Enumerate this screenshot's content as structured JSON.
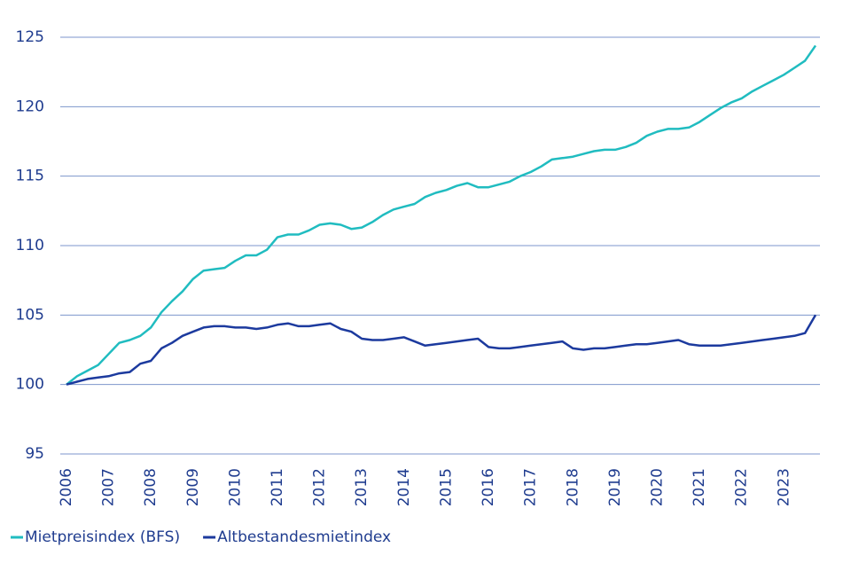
{
  "chart_data": {
    "type": "line",
    "categories": [
      "2006",
      null,
      null,
      null,
      "2007",
      null,
      null,
      null,
      "2008",
      null,
      null,
      null,
      "2009",
      null,
      null,
      null,
      "2010",
      null,
      null,
      null,
      "2011",
      null,
      null,
      null,
      "2012",
      null,
      null,
      null,
      "2013",
      null,
      null,
      null,
      "2014",
      null,
      null,
      null,
      "2015",
      null,
      null,
      null,
      "2016",
      null,
      null,
      null,
      "2017",
      null,
      null,
      null,
      "2018",
      null,
      null,
      null,
      "2019",
      null,
      null,
      null,
      "2020",
      null,
      null,
      null,
      "2021",
      null,
      null,
      null,
      "2022",
      null,
      null,
      null,
      "2023",
      null,
      null,
      null
    ],
    "series": [
      {
        "name": "Mietpreisindex (BFS)",
        "color": "#20bcc0",
        "values": [
          100,
          100.6,
          101.0,
          101.4,
          102.2,
          103.0,
          103.2,
          103.5,
          104.1,
          105.2,
          106.0,
          106.7,
          107.6,
          108.2,
          108.3,
          108.4,
          108.9,
          109.3,
          109.3,
          109.7,
          110.6,
          110.8,
          110.8,
          111.1,
          111.5,
          111.6,
          111.5,
          111.2,
          111.3,
          111.7,
          112.2,
          112.6,
          112.8,
          113.0,
          113.5,
          113.8,
          114.0,
          114.3,
          114.5,
          114.2,
          114.2,
          114.4,
          114.6,
          115.0,
          115.3,
          115.7,
          116.2,
          116.3,
          116.4,
          116.6,
          116.8,
          116.9,
          116.9,
          117.1,
          117.4,
          117.9,
          118.2,
          118.4,
          118.4,
          118.5,
          118.9,
          119.4,
          119.9,
          120.3,
          120.6,
          121.1,
          121.5,
          121.9,
          122.3,
          122.8,
          123.3,
          124.4
        ]
      },
      {
        "name": "Altbestandesmietindex",
        "color": "#1c3a9e",
        "values": [
          100,
          100.2,
          100.4,
          100.5,
          100.6,
          100.8,
          100.9,
          101.5,
          101.7,
          102.6,
          103.0,
          103.5,
          103.8,
          104.1,
          104.2,
          104.2,
          104.1,
          104.1,
          104.0,
          104.1,
          104.3,
          104.4,
          104.2,
          104.2,
          104.3,
          104.4,
          104.0,
          103.8,
          103.3,
          103.2,
          103.2,
          103.3,
          103.4,
          103.1,
          102.8,
          102.9,
          103.0,
          103.1,
          103.2,
          103.3,
          102.7,
          102.6,
          102.6,
          102.7,
          102.8,
          102.9,
          103.0,
          103.1,
          102.6,
          102.5,
          102.6,
          102.6,
          102.7,
          102.8,
          102.9,
          102.9,
          103.0,
          103.1,
          103.2,
          102.9,
          102.8,
          102.8,
          102.8,
          102.9,
          103.0,
          103.1,
          103.2,
          103.3,
          103.4,
          103.5,
          103.7,
          105.0
        ]
      }
    ],
    "ylim": [
      95,
      125
    ],
    "yticks": [
      95,
      100,
      105,
      110,
      115,
      120,
      125
    ],
    "grid": true
  }
}
